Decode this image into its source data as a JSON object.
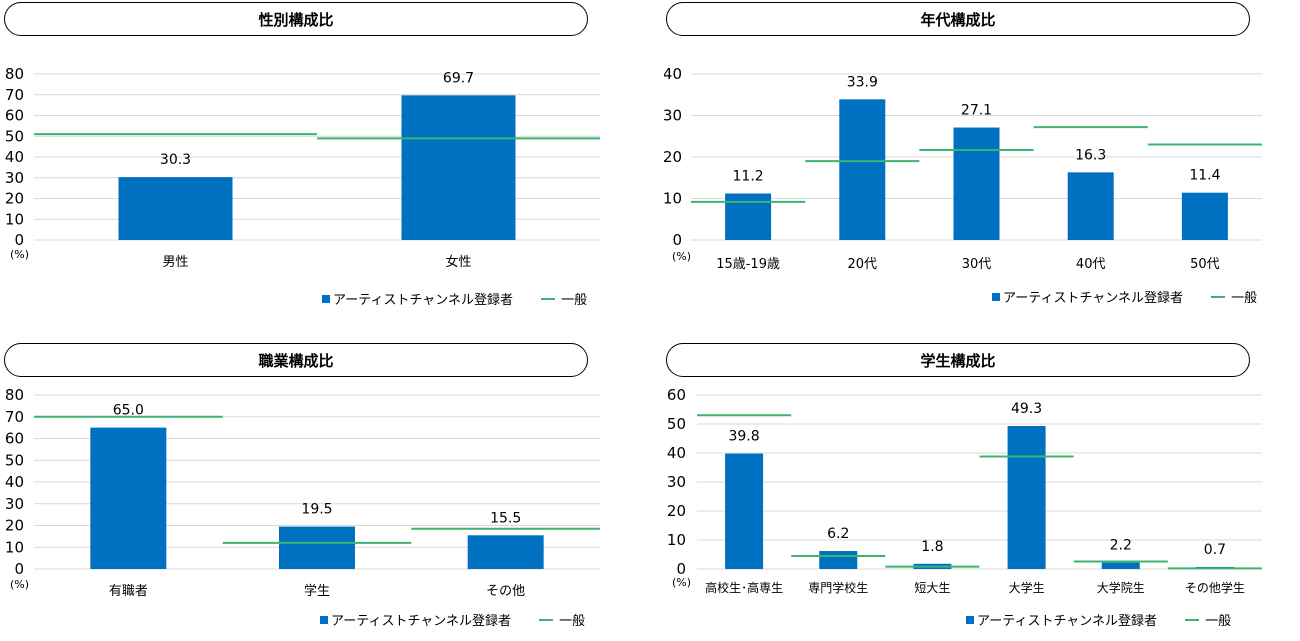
{
  "legend": {
    "series_label": "アーティストチャンネル登録者",
    "general_label": "一般"
  },
  "unit_label": "(%)",
  "colors": {
    "bar": "#0070c0",
    "general_line": "#3cb371",
    "grid": "#d9d9d9"
  },
  "chart_data": [
    {
      "id": "gender",
      "type": "bar",
      "title": "性別構成比",
      "categories": [
        "男性",
        "女性"
      ],
      "values": [
        30.3,
        69.7
      ],
      "value_labels": [
        "30.3",
        "69.7"
      ],
      "general": [
        51,
        49
      ],
      "ylim": [
        0,
        80
      ],
      "yticks": [
        0,
        10,
        20,
        30,
        40,
        50,
        60,
        70,
        80
      ]
    },
    {
      "id": "age",
      "type": "bar",
      "title": "年代構成比",
      "categories": [
        "15歳-19歳",
        "20代",
        "30代",
        "40代",
        "50代"
      ],
      "values": [
        11.2,
        33.9,
        27.1,
        16.3,
        11.4
      ],
      "value_labels": [
        "11.2",
        "33.9",
        "27.1",
        "16.3",
        "11.4"
      ],
      "general": [
        9.2,
        19,
        21.7,
        27.2,
        23
      ],
      "ylim": [
        0,
        40
      ],
      "yticks": [
        0,
        10,
        20,
        30,
        40
      ]
    },
    {
      "id": "occupation",
      "type": "bar",
      "title": "職業構成比",
      "categories": [
        "有職者",
        "学生",
        "その他"
      ],
      "values": [
        65.0,
        19.5,
        15.5
      ],
      "value_labels": [
        "65.0",
        "19.5",
        "15.5"
      ],
      "general": [
        70,
        12,
        18.5
      ],
      "ylim": [
        0,
        80
      ],
      "yticks": [
        0,
        10,
        20,
        30,
        40,
        50,
        60,
        70,
        80
      ]
    },
    {
      "id": "student",
      "type": "bar",
      "title": "学生構成比",
      "categories": [
        "高校生･高専生",
        "専門学校生",
        "短大生",
        "大学生",
        "大学院生",
        "その他学生"
      ],
      "values": [
        39.8,
        6.2,
        1.8,
        49.3,
        2.2,
        0.7
      ],
      "value_labels": [
        "39.8",
        "6.2",
        "1.8",
        "49.3",
        "2.2",
        "0.7"
      ],
      "general": [
        53,
        4.5,
        0.8,
        38.8,
        2.6,
        0.2
      ],
      "ylim": [
        0,
        60
      ],
      "yticks": [
        0,
        10,
        20,
        30,
        40,
        50,
        60
      ]
    }
  ]
}
